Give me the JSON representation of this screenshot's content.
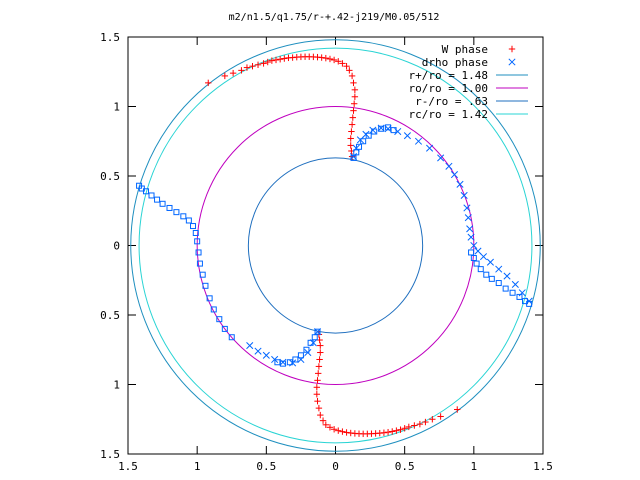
{
  "chart_data": {
    "type": "scatter",
    "title": "m2/n1.5/q1.75/r-+.42-j219/M0.05/512",
    "xlabel": "",
    "ylabel": "",
    "xlim": [
      -1.5,
      1.5
    ],
    "ylim": [
      -1.5,
      1.5
    ],
    "x_ticks": [
      -1.5,
      -1,
      -0.5,
      0,
      0.5,
      1,
      1.5
    ],
    "y_ticks": [
      1.5,
      1,
      0.5,
      0,
      -0.5,
      -1,
      -1.5
    ],
    "x_tick_labels": [
      "1.5",
      "1",
      "0.5",
      "0",
      "0.5",
      "1",
      "1.5"
    ],
    "y_tick_labels": [
      "1.5",
      "1",
      "0.5",
      "0",
      "0.5",
      "1",
      "1.5"
    ],
    "grid": false,
    "legend": "top-right",
    "series": [
      {
        "name": "W phase",
        "kind": "points",
        "marker": "plus",
        "color": "#ff0000",
        "points": [
          [
            -0.92,
            1.17
          ],
          [
            -0.8,
            1.22
          ],
          [
            -0.74,
            1.24
          ],
          [
            -0.68,
            1.26
          ],
          [
            -0.64,
            1.28
          ],
          [
            -0.6,
            1.29
          ],
          [
            -0.56,
            1.3
          ],
          [
            -0.52,
            1.31
          ],
          [
            -0.49,
            1.32
          ],
          [
            -0.46,
            1.33
          ],
          [
            -0.43,
            1.335
          ],
          [
            -0.4,
            1.34
          ],
          [
            -0.37,
            1.345
          ],
          [
            -0.34,
            1.35
          ],
          [
            -0.31,
            1.352
          ],
          [
            -0.28,
            1.355
          ],
          [
            -0.25,
            1.357
          ],
          [
            -0.22,
            1.358
          ],
          [
            -0.19,
            1.358
          ],
          [
            -0.16,
            1.357
          ],
          [
            -0.13,
            1.355
          ],
          [
            -0.1,
            1.352
          ],
          [
            -0.07,
            1.348
          ],
          [
            -0.04,
            1.342
          ],
          [
            -0.01,
            1.335
          ],
          [
            0.02,
            1.325
          ],
          [
            0.05,
            1.31
          ],
          [
            0.08,
            1.29
          ],
          [
            0.1,
            1.26
          ],
          [
            0.12,
            1.22
          ],
          [
            0.13,
            1.17
          ],
          [
            0.14,
            1.12
          ],
          [
            0.14,
            1.07
          ],
          [
            0.135,
            1.02
          ],
          [
            0.13,
            0.97
          ],
          [
            0.125,
            0.92
          ],
          [
            0.12,
            0.87
          ],
          [
            0.115,
            0.82
          ],
          [
            0.11,
            0.77
          ],
          [
            0.11,
            0.72
          ],
          [
            0.115,
            0.68
          ],
          [
            0.12,
            0.64
          ],
          [
            0.88,
            -1.18
          ],
          [
            0.76,
            -1.23
          ],
          [
            0.7,
            -1.25
          ],
          [
            0.65,
            -1.27
          ],
          [
            0.61,
            -1.285
          ],
          [
            0.57,
            -1.295
          ],
          [
            0.53,
            -1.305
          ],
          [
            0.5,
            -1.315
          ],
          [
            0.47,
            -1.325
          ],
          [
            0.44,
            -1.332
          ],
          [
            0.41,
            -1.338
          ],
          [
            0.38,
            -1.343
          ],
          [
            0.35,
            -1.347
          ],
          [
            0.32,
            -1.35
          ],
          [
            0.29,
            -1.352
          ],
          [
            0.26,
            -1.354
          ],
          [
            0.23,
            -1.355
          ],
          [
            0.2,
            -1.355
          ],
          [
            0.17,
            -1.354
          ],
          [
            0.14,
            -1.352
          ],
          [
            0.11,
            -1.349
          ],
          [
            0.08,
            -1.345
          ],
          [
            0.05,
            -1.339
          ],
          [
            0.02,
            -1.332
          ],
          [
            -0.01,
            -1.322
          ],
          [
            -0.04,
            -1.308
          ],
          [
            -0.07,
            -1.29
          ],
          [
            -0.09,
            -1.26
          ],
          [
            -0.11,
            -1.22
          ],
          [
            -0.12,
            -1.17
          ],
          [
            -0.13,
            -1.12
          ],
          [
            -0.135,
            -1.07
          ],
          [
            -0.135,
            -1.02
          ],
          [
            -0.13,
            -0.97
          ],
          [
            -0.125,
            -0.92
          ],
          [
            -0.12,
            -0.87
          ],
          [
            -0.115,
            -0.82
          ],
          [
            -0.11,
            -0.77
          ],
          [
            -0.11,
            -0.72
          ],
          [
            -0.115,
            -0.68
          ],
          [
            -0.12,
            -0.64
          ]
        ]
      },
      {
        "name": "drho phase",
        "kind": "points",
        "marker": "cross",
        "color": "#0066ff",
        "points": [
          [
            0.13,
            0.64
          ],
          [
            0.15,
            0.7
          ],
          [
            0.18,
            0.76
          ],
          [
            0.22,
            0.8
          ],
          [
            0.27,
            0.83
          ],
          [
            0.33,
            0.845
          ],
          [
            0.38,
            0.84
          ],
          [
            0.45,
            0.82
          ],
          [
            0.52,
            0.79
          ],
          [
            0.6,
            0.75
          ],
          [
            0.68,
            0.7
          ],
          [
            0.76,
            0.63
          ],
          [
            0.82,
            0.57
          ],
          [
            0.86,
            0.51
          ],
          [
            0.9,
            0.44
          ],
          [
            0.93,
            0.36
          ],
          [
            0.95,
            0.27
          ],
          [
            0.96,
            0.2
          ],
          [
            0.97,
            0.12
          ],
          [
            0.98,
            0.06
          ],
          [
            1.0,
            0.0
          ],
          [
            1.03,
            -0.04
          ],
          [
            1.07,
            -0.08
          ],
          [
            1.12,
            -0.12
          ],
          [
            1.18,
            -0.17
          ],
          [
            1.24,
            -0.22
          ],
          [
            1.3,
            -0.28
          ],
          [
            1.35,
            -0.34
          ],
          [
            1.4,
            -0.4
          ],
          [
            -0.13,
            -0.62
          ],
          [
            -0.16,
            -0.7
          ],
          [
            -0.2,
            -0.77
          ],
          [
            -0.25,
            -0.82
          ],
          [
            -0.31,
            -0.845
          ],
          [
            -0.38,
            -0.84
          ],
          [
            -0.44,
            -0.82
          ],
          [
            -0.5,
            -0.79
          ],
          [
            -0.56,
            -0.76
          ],
          [
            -0.62,
            -0.72
          ]
        ]
      },
      {
        "name": "",
        "kind": "points",
        "marker": "square",
        "color": "#0066ff",
        "points": [
          [
            -1.42,
            0.43
          ],
          [
            -1.4,
            0.41
          ],
          [
            -1.37,
            0.39
          ],
          [
            -1.33,
            0.36
          ],
          [
            -1.29,
            0.33
          ],
          [
            -1.25,
            0.3
          ],
          [
            -1.2,
            0.27
          ],
          [
            -1.15,
            0.24
          ],
          [
            -1.1,
            0.21
          ],
          [
            -1.06,
            0.18
          ],
          [
            -1.03,
            0.14
          ],
          [
            -1.01,
            0.09
          ],
          [
            -1.0,
            0.03
          ],
          [
            -0.99,
            -0.05
          ],
          [
            -0.98,
            -0.13
          ],
          [
            -0.96,
            -0.21
          ],
          [
            -0.94,
            -0.29
          ],
          [
            -0.91,
            -0.38
          ],
          [
            -0.88,
            -0.46
          ],
          [
            -0.84,
            -0.53
          ],
          [
            -0.8,
            -0.6
          ],
          [
            -0.75,
            -0.66
          ],
          [
            0.98,
            -0.05
          ],
          [
            1.0,
            -0.09
          ],
          [
            1.02,
            -0.13
          ],
          [
            1.05,
            -0.17
          ],
          [
            1.09,
            -0.21
          ],
          [
            1.13,
            -0.24
          ],
          [
            1.18,
            -0.27
          ],
          [
            1.23,
            -0.31
          ],
          [
            1.28,
            -0.34
          ],
          [
            1.33,
            -0.37
          ],
          [
            1.37,
            -0.4
          ],
          [
            1.4,
            -0.42
          ],
          [
            0.13,
            0.63
          ],
          [
            0.15,
            0.67
          ],
          [
            0.17,
            0.71
          ],
          [
            0.2,
            0.75
          ],
          [
            0.24,
            0.79
          ],
          [
            0.28,
            0.82
          ],
          [
            0.33,
            0.84
          ],
          [
            0.38,
            0.85
          ],
          [
            0.42,
            0.83
          ],
          [
            -0.13,
            -0.62
          ],
          [
            -0.15,
            -0.66
          ],
          [
            -0.18,
            -0.7
          ],
          [
            -0.21,
            -0.75
          ],
          [
            -0.25,
            -0.79
          ],
          [
            -0.29,
            -0.82
          ],
          [
            -0.33,
            -0.84
          ],
          [
            -0.38,
            -0.85
          ],
          [
            -0.42,
            -0.84
          ]
        ]
      },
      {
        "name": "r+/ro = 1.48",
        "kind": "circle",
        "r": 1.48,
        "color": "#1f8fbf"
      },
      {
        "name": "ro/ro = 1.00",
        "kind": "circle",
        "r": 1.0,
        "color": "#bf00bf"
      },
      {
        "name": "r-/ro = .63",
        "kind": "circle",
        "r": 0.63,
        "color": "#1f6fbf"
      },
      {
        "name": "rc/ro = 1.42",
        "kind": "circle",
        "r": 1.42,
        "color": "#2ad4d4"
      }
    ]
  }
}
